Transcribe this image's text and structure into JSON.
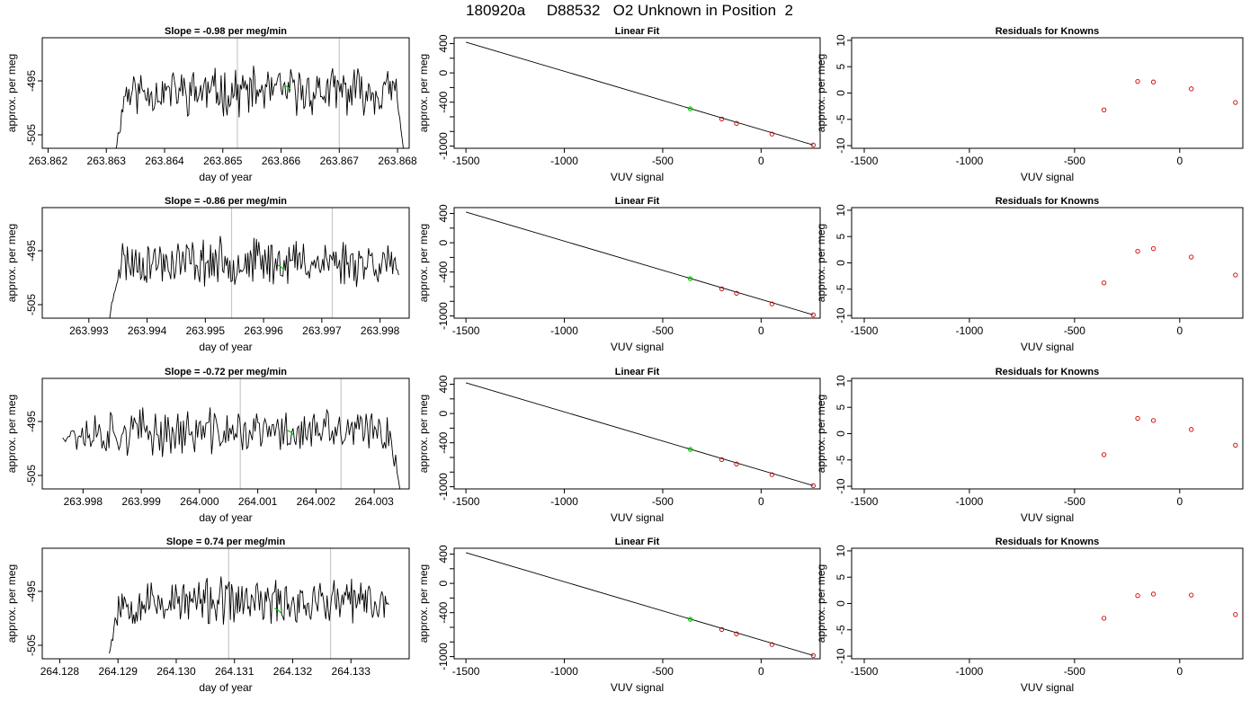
{
  "header": {
    "run_id": "180920a",
    "tank_id": "D88532",
    "description": "O2 Unknown in Position  2"
  },
  "colors": {
    "trace": "#000000",
    "marker_green": "#00cc00",
    "known_points": "#cc0000",
    "vertical_lines": "#c8c8c8",
    "frame": "#000000"
  },
  "chart_data": [
    {
      "panel": "time-series-1",
      "type": "line",
      "title": "Slope =  -0.98  per meg/min",
      "xlabel": "day of year",
      "ylabel": "approx. per meg",
      "xlim": [
        263.8619,
        263.8682
      ],
      "ylim": [
        -507.5,
        -487
      ],
      "xticks": [
        "263.862",
        "263.863",
        "263.864",
        "263.865",
        "263.866",
        "263.867",
        "263.868"
      ],
      "yticks": [
        "-495",
        "-505"
      ],
      "x_start": 263.86316,
      "x_end": 263.8681,
      "trace_start_y": -508,
      "trace_end_y": -507.5,
      "vlines": [
        263.86525,
        263.867
      ],
      "marker": {
        "x": 263.86612,
        "y": -496.2
      },
      "seed": 11
    },
    {
      "panel": "linear-fit-1",
      "type": "scatter",
      "title": "Linear Fit",
      "xlabel": "VUV signal",
      "ylabel": "approx. per meg",
      "xlim": [
        -1560,
        300
      ],
      "ylim": [
        -1030,
        480
      ],
      "xticks": [
        "-1500",
        "-1000",
        "-500",
        "0"
      ],
      "yticks": [
        "400",
        "0",
        "-400",
        "-1000"
      ],
      "line": {
        "x": [
          -1500,
          265
        ],
        "y": [
          420,
          -985
        ]
      },
      "knowns": [
        [
          -200,
          -630
        ],
        [
          -125,
          -690
        ],
        [
          55,
          -835
        ],
        [
          265,
          -985
        ]
      ],
      "unknown": [
        -360,
        -490
      ]
    },
    {
      "panel": "residuals-1",
      "type": "scatter",
      "title": "Residuals for Knowns",
      "xlabel": "VUV signal",
      "ylabel": "approx. per meg",
      "xlim": [
        -1560,
        300
      ],
      "ylim": [
        -10.5,
        10.5
      ],
      "xticks": [
        "-1500",
        "-1000",
        "-500",
        "0"
      ],
      "yticks": [
        "10",
        "5",
        "0",
        "-5",
        "-10"
      ],
      "points": [
        [
          -360,
          -3.2
        ],
        [
          -200,
          2.2
        ],
        [
          -125,
          2.1
        ],
        [
          55,
          0.8
        ],
        [
          265,
          -1.8
        ]
      ]
    },
    {
      "panel": "time-series-2",
      "type": "line",
      "title": "Slope =  -0.86  per meg/min",
      "xlabel": "day of year",
      "ylabel": "approx. per meg",
      "xlim": [
        263.9922,
        263.9985
      ],
      "ylim": [
        -507.5,
        -487
      ],
      "xticks": [
        "263.993",
        "263.994",
        "263.995",
        "263.996",
        "263.997",
        "263.998"
      ],
      "yticks": [
        "-495",
        "-505"
      ],
      "x_start": 263.99335,
      "x_end": 263.99832,
      "trace_start_y": -508,
      "trace_end_y": -499.5,
      "vlines": [
        263.99545,
        263.99718
      ],
      "marker": {
        "x": 263.9963,
        "y": -498
      },
      "seed": 23
    },
    {
      "panel": "linear-fit-2",
      "type": "scatter",
      "title": "Linear Fit",
      "xlabel": "VUV signal",
      "ylabel": "approx. per meg",
      "xlim": [
        -1560,
        300
      ],
      "ylim": [
        -1030,
        480
      ],
      "xticks": [
        "-1500",
        "-1000",
        "-500",
        "0"
      ],
      "yticks": [
        "400",
        "0",
        "-400",
        "-1000"
      ],
      "line": {
        "x": [
          -1500,
          265
        ],
        "y": [
          420,
          -985
        ]
      },
      "knowns": [
        [
          -200,
          -630
        ],
        [
          -125,
          -690
        ],
        [
          55,
          -835
        ],
        [
          265,
          -985
        ]
      ],
      "unknown": [
        -360,
        -490
      ]
    },
    {
      "panel": "residuals-2",
      "type": "scatter",
      "title": "Residuals for Knowns",
      "xlabel": "VUV signal",
      "ylabel": "approx. per meg",
      "xlim": [
        -1560,
        300
      ],
      "ylim": [
        -10.5,
        10.5
      ],
      "xticks": [
        "-1500",
        "-1000",
        "-500",
        "0"
      ],
      "yticks": [
        "10",
        "5",
        "0",
        "-5",
        "-10"
      ],
      "points": [
        [
          -360,
          -3.8
        ],
        [
          -200,
          2.2
        ],
        [
          -125,
          2.7
        ],
        [
          55,
          1.1
        ],
        [
          265,
          -2.3
        ]
      ]
    },
    {
      "panel": "time-series-3",
      "type": "line",
      "title": "Slope =  -0.72  per meg/min",
      "xlabel": "day of year",
      "ylabel": "approx. per meg",
      "xlim": [
        263.9973,
        264.0036
      ],
      "ylim": [
        -507.5,
        -487
      ],
      "xticks": [
        "263.998",
        "263.999",
        "264.000",
        "264.001",
        "264.002",
        "264.003"
      ],
      "yticks": [
        "-495",
        "-505"
      ],
      "x_start": 263.99765,
      "x_end": 264.00344,
      "trace_start_y": -498,
      "trace_end_y": -507.5,
      "vlines": [
        264.0007,
        264.00243
      ],
      "marker": {
        "x": 264.00157,
        "y": -497
      },
      "seed": 37
    },
    {
      "panel": "linear-fit-3",
      "type": "scatter",
      "title": "Linear Fit",
      "xlabel": "VUV signal",
      "ylabel": "approx. per meg",
      "xlim": [
        -1560,
        300
      ],
      "ylim": [
        -1030,
        480
      ],
      "xticks": [
        "-1500",
        "-1000",
        "-500",
        "0"
      ],
      "yticks": [
        "400",
        "0",
        "-400",
        "-1000"
      ],
      "line": {
        "x": [
          -1500,
          265
        ],
        "y": [
          420,
          -985
        ]
      },
      "knowns": [
        [
          -200,
          -630
        ],
        [
          -125,
          -690
        ],
        [
          55,
          -835
        ],
        [
          265,
          -985
        ]
      ],
      "unknown": [
        -360,
        -490
      ]
    },
    {
      "panel": "residuals-3",
      "type": "scatter",
      "title": "Residuals for Knowns",
      "xlabel": "VUV signal",
      "ylabel": "approx. per meg",
      "xlim": [
        -1560,
        300
      ],
      "ylim": [
        -10.5,
        10.5
      ],
      "xticks": [
        "-1500",
        "-1000",
        "-500",
        "0"
      ],
      "yticks": [
        "10",
        "5",
        "0",
        "-5",
        "-10"
      ],
      "points": [
        [
          -360,
          -4.0
        ],
        [
          -200,
          2.9
        ],
        [
          -125,
          2.5
        ],
        [
          55,
          0.8
        ],
        [
          265,
          -2.2
        ]
      ]
    },
    {
      "panel": "time-series-4",
      "type": "line",
      "title": "Slope =  0.74  per meg/min",
      "xlabel": "day of year",
      "ylabel": "approx. per meg",
      "xlim": [
        264.1277,
        264.134
      ],
      "ylim": [
        -507.5,
        -487
      ],
      "xticks": [
        "264.128",
        "264.129",
        "264.130",
        "264.131",
        "264.132",
        "264.133"
      ],
      "yticks": [
        "-495",
        "-505"
      ],
      "x_start": 264.12885,
      "x_end": 264.13365,
      "trace_start_y": -506.5,
      "trace_end_y": -497.5,
      "vlines": [
        264.1309,
        264.13265
      ],
      "marker": {
        "x": 264.13175,
        "y": -498.5
      },
      "seed": 53
    },
    {
      "panel": "linear-fit-4",
      "type": "scatter",
      "title": "Linear Fit",
      "xlabel": "VUV signal",
      "ylabel": "approx. per meg",
      "xlim": [
        -1560,
        300
      ],
      "ylim": [
        -1030,
        480
      ],
      "xticks": [
        "-1500",
        "-1000",
        "-500",
        "0"
      ],
      "yticks": [
        "400",
        "0",
        "-400",
        "-1000"
      ],
      "line": {
        "x": [
          -1500,
          265
        ],
        "y": [
          420,
          -985
        ]
      },
      "knowns": [
        [
          -200,
          -630
        ],
        [
          -125,
          -690
        ],
        [
          55,
          -835
        ],
        [
          265,
          -985
        ]
      ],
      "unknown": [
        -360,
        -490
      ]
    },
    {
      "panel": "residuals-4",
      "type": "scatter",
      "title": "Residuals for Knowns",
      "xlabel": "VUV signal",
      "ylabel": "approx. per meg",
      "xlim": [
        -1560,
        300
      ],
      "ylim": [
        -10.5,
        10.5
      ],
      "xticks": [
        "-1500",
        "-1000",
        "-500",
        "0"
      ],
      "yticks": [
        "10",
        "5",
        "0",
        "-5",
        "-10"
      ],
      "points": [
        [
          -360,
          -2.8
        ],
        [
          -200,
          1.5
        ],
        [
          -125,
          1.8
        ],
        [
          55,
          1.6
        ],
        [
          265,
          -2.1
        ]
      ]
    }
  ]
}
